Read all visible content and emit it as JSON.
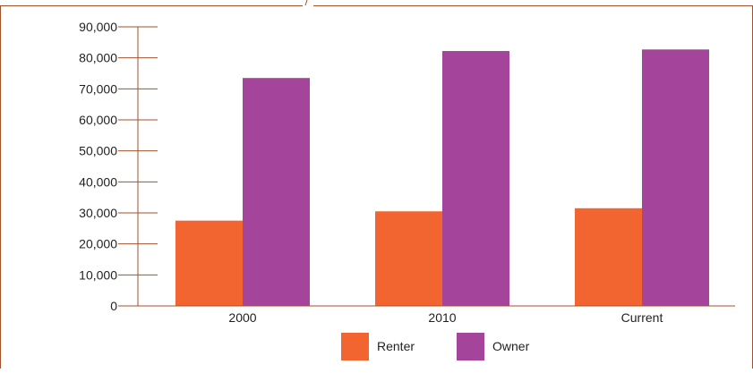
{
  "colors": {
    "frame": "#a0522d",
    "axis": "#a0522d",
    "renter": "#f26531",
    "owner": "#a4449a"
  },
  "chart_data": {
    "type": "bar",
    "categories": [
      "2000",
      "2010",
      "Current"
    ],
    "series": [
      {
        "name": "Renter",
        "values": [
          27500,
          30500,
          31500
        ]
      },
      {
        "name": "Owner",
        "values": [
          73500,
          82200,
          82700
        ]
      }
    ],
    "ylim": [
      0,
      90000
    ],
    "yticks": [
      0,
      10000,
      20000,
      30000,
      40000,
      50000,
      60000,
      70000,
      80000,
      90000
    ],
    "ytick_labels": [
      "0",
      "10,000",
      "20,000",
      "30,000",
      "40,000",
      "50,000",
      "60,000",
      "70,000",
      "80,000",
      "90,000"
    ],
    "grid": false,
    "legend_position": "bottom-center"
  }
}
